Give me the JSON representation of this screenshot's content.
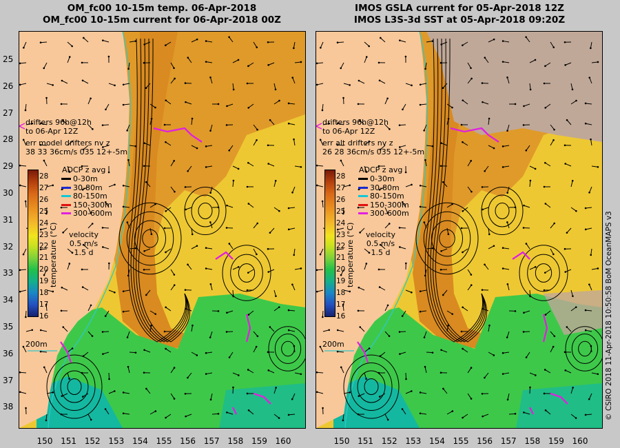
{
  "left_title": {
    "line1": "OM_fc00 10-15m temp. 06-Apr-2018",
    "line2": "OM_fc00 10-15m current for 06-Apr-2018 00Z"
  },
  "right_title": {
    "line1": "IMOS GSLA current for 05-Apr-2018 12Z",
    "line2": "IMOS L3S-3d SST at 05-Apr-2018 09:20Z"
  },
  "y_ticks": [
    "25",
    "26",
    "27",
    "28",
    "29",
    "30",
    "31",
    "32",
    "33",
    "34",
    "35",
    "36",
    "37",
    "38"
  ],
  "x_ticks": [
    "150",
    "151",
    "152",
    "153",
    "154",
    "155",
    "156",
    "157",
    "158",
    "159",
    "160"
  ],
  "left_panel": {
    "drifters_line1": "drifters 96h@12h",
    "drifters_line2": "to 06-Apr 12Z",
    "err_line1": "err model drifters nv z",
    "err_line2": "38 33 36cm/s 035 12+-5m"
  },
  "right_panel": {
    "drifters_line1": "drifters 96h@12h",
    "drifters_line2": "to 06-Apr 12Z",
    "err_line1": "err alt drifters nv z",
    "err_line2": "26 28 36cm/s 035 12+-5m"
  },
  "legend": {
    "title": "ADCP z avg",
    "entries": [
      {
        "label": "0-30m",
        "color": "#000000"
      },
      {
        "label": "30-80m",
        "color": "#1a2ad0"
      },
      {
        "label": "80-150m",
        "color": "#10c8d8"
      },
      {
        "label": "150-300m",
        "color": "#e01010"
      },
      {
        "label": "300-600m",
        "color": "#e020e0"
      }
    ]
  },
  "colorbar": {
    "ticks": [
      "28",
      "27",
      "26",
      "25",
      "24",
      "23",
      "22",
      "21",
      "20",
      "19",
      "18",
      "17",
      "16"
    ],
    "label": "temperature (°C)"
  },
  "velocity": {
    "line1": "velocity",
    "line2": "0.5 m/s",
    "line3": "1.5 d"
  },
  "depth_label": "200m",
  "copyright": "© CSIRO 2018   11-Apr-2018 10:50:58 BoM OceanMAPS v3",
  "colors": {
    "land": "#f8c89a",
    "warm": "#e09a2a",
    "mid": "#eec832",
    "cool": "#3ec84a",
    "sea_blue": "#14b8a0",
    "cloud": "#c0a898",
    "drifter": "#e020e0"
  }
}
